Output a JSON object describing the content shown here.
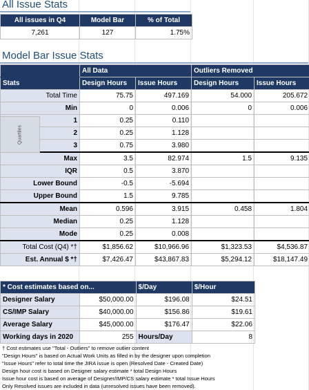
{
  "section1": {
    "title": "All Issue Stats",
    "headers": [
      "All issues in Q4",
      "Model Bar",
      "% of Total"
    ],
    "values": [
      "7,261",
      "127",
      "1.75%"
    ]
  },
  "section2": {
    "title": "Model Bar Issue Stats",
    "group_all": "All Data",
    "group_outliers": "Outliers Removed",
    "col_stats": "Stats",
    "col_design": "Design Hours",
    "col_issue": "Issue Hours",
    "quartiles_label": "Quartiles",
    "rows": [
      {
        "label": "Total Time",
        "a": "75.75",
        "b": "497.169",
        "c": "54.000",
        "d": "205.672"
      },
      {
        "label": "Min",
        "a": "0",
        "b": "0.006",
        "c": "0",
        "d": "0.006"
      },
      {
        "label": "1",
        "a": "0.25",
        "b": "0.110",
        "c": "",
        "d": ""
      },
      {
        "label": "2",
        "a": "0.25",
        "b": "1.128",
        "c": "",
        "d": ""
      },
      {
        "label": "3",
        "a": "0.75",
        "b": "3.980",
        "c": "",
        "d": ""
      },
      {
        "label": "Max",
        "a": "3.5",
        "b": "82.974",
        "c": "1.5",
        "d": "9.135"
      },
      {
        "label": "IQR",
        "a": "0.5",
        "b": "3.870",
        "c": "",
        "d": ""
      },
      {
        "label": "Lower Bound",
        "a": "-0.5",
        "b": "-5.694",
        "c": "",
        "d": ""
      },
      {
        "label": "Upper Bound",
        "a": "1.5",
        "b": "9.785",
        "c": "",
        "d": ""
      },
      {
        "label": "Mean",
        "a": "0.596",
        "b": "3.915",
        "c": "0.458",
        "d": "1.804"
      },
      {
        "label": "Median",
        "a": "0.25",
        "b": "1.128",
        "c": "",
        "d": ""
      },
      {
        "label": "Mode",
        "a": "0.25",
        "b": "0.008",
        "c": "",
        "d": ""
      },
      {
        "label": "Total Cost (Q4) *†",
        "a": "$1,856.62",
        "b": "$10,966.96",
        "c": "$1,323.53",
        "d": "$4,536.87"
      },
      {
        "label": "Est. Annual $ *†",
        "a": "$7,426.47",
        "b": "$43,867.83",
        "c": "$5,294.12",
        "d": "$18,147.49"
      }
    ]
  },
  "section3": {
    "header": [
      "* Cost estimates based on...",
      "$/Day",
      "$/Hour"
    ],
    "rows": [
      {
        "label": "Designer Salary",
        "salary": "$50,000.00",
        "day": "$196.08",
        "hour": "$24.51"
      },
      {
        "label": "CS/IMP Salary",
        "salary": "$40,000.00",
        "day": "$156.86",
        "hour": "$19.61"
      },
      {
        "label": "Average Salary",
        "salary": "$45,000.00",
        "day": "$176.47",
        "hour": "$22.06"
      },
      {
        "label": "Working days in 2020",
        "salary": "255",
        "day": "Hours/Day",
        "hour": "8"
      }
    ]
  },
  "notes": [
    "† Cost estimates use \"Total - Outliers\" to remove outlier content",
    "\"Design Hours\" is based on Actual Work Units as filled in by the designer upon completion",
    "\"Issue Hours\" refer to total time the JIRA issue is open (Resolved Date - Created Date)",
    "Design hour cost is based on Designer salary estimate * total Design Hours",
    "Issue hour cost is based on average of Designer/IMP/CS salary estimate * total Issue Hours",
    "Only Resolved issues are included in data (unresolved issues have been removed)."
  ]
}
